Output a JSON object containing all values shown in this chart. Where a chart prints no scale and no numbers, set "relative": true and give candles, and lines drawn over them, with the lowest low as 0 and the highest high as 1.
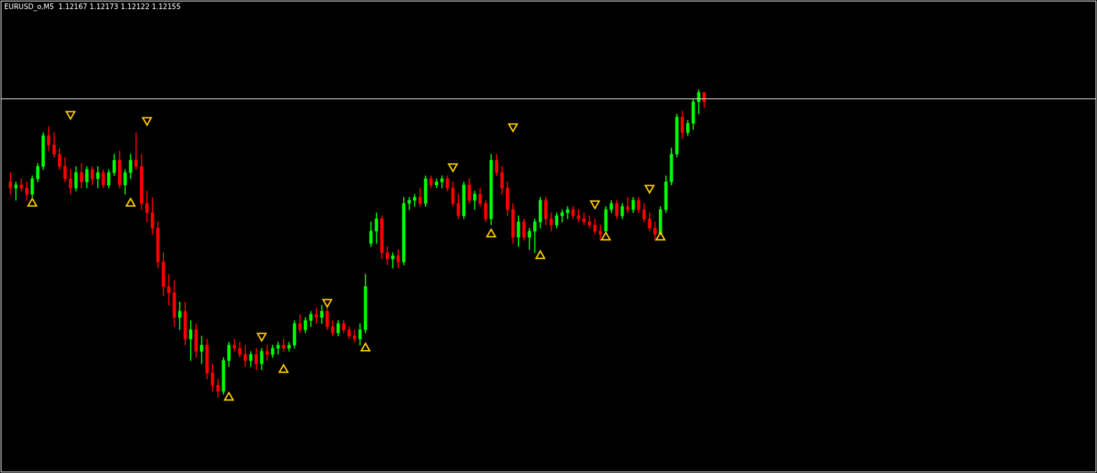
{
  "chart_data": {
    "type": "candlestick",
    "title": "EURUSD_o,M5  1.12167 1.12173 1.12122 1.12155",
    "relative": true,
    "tick_labels": false,
    "legend": false,
    "marker": "triangle",
    "categories": [
      null,
      null,
      null,
      null,
      null,
      null,
      null,
      null,
      null,
      null,
      null,
      null,
      null,
      null,
      null,
      null,
      null,
      null,
      null,
      null,
      null,
      null,
      null,
      null,
      null,
      null,
      null,
      null,
      null,
      null,
      null,
      null,
      null,
      null,
      null,
      null,
      null,
      null,
      null,
      null,
      null,
      null,
      null,
      null,
      null,
      null,
      null,
      null,
      null,
      null,
      null,
      null,
      null,
      null,
      null,
      null,
      null,
      null,
      null,
      null,
      null,
      null,
      null,
      null,
      null,
      null,
      null,
      null,
      null,
      null,
      null,
      null,
      null,
      null,
      null,
      null,
      null,
      null,
      null,
      null,
      null,
      null,
      null,
      null,
      null,
      null,
      null,
      null,
      null,
      null,
      null,
      null,
      null,
      null,
      null,
      null,
      null,
      null,
      null,
      null,
      null,
      null,
      null,
      null,
      null,
      null,
      null,
      null,
      null,
      null,
      null,
      null,
      null,
      null,
      null,
      null,
      null,
      null,
      null,
      null,
      null,
      null,
      null,
      null,
      null,
      null,
      null,
      null,
      null,
      null,
      null,
      null,
      null,
      null,
      null,
      null,
      null,
      null,
      null,
      null,
      null,
      null,
      null,
      null,
      null,
      null,
      null,
      null,
      null,
      null,
      null,
      null,
      null,
      null,
      null,
      null,
      null,
      null,
      null,
      null,
      null,
      null,
      null,
      null,
      null,
      null,
      null,
      null,
      null,
      null,
      null,
      null,
      null,
      null,
      null,
      null,
      null,
      null,
      null,
      null,
      null,
      null,
      null,
      null,
      null,
      null,
      null,
      null,
      null,
      null,
      null,
      null,
      null,
      null,
      null,
      null,
      null,
      null
    ],
    "ohlc": [
      [
        0.7,
        0.73,
        0.66,
        0.68
      ],
      [
        0.68,
        0.7,
        0.64,
        0.69
      ],
      [
        0.69,
        0.71,
        0.67,
        0.68
      ],
      [
        0.68,
        0.7,
        0.64,
        0.66
      ],
      [
        0.66,
        0.72,
        0.65,
        0.71
      ],
      [
        0.71,
        0.76,
        0.7,
        0.75
      ],
      [
        0.75,
        0.86,
        0.74,
        0.85
      ],
      [
        0.85,
        0.88,
        0.8,
        0.82
      ],
      [
        0.82,
        0.86,
        0.78,
        0.79
      ],
      [
        0.79,
        0.81,
        0.74,
        0.75
      ],
      [
        0.75,
        0.78,
        0.7,
        0.71
      ],
      [
        0.71,
        0.74,
        0.66,
        0.68
      ],
      [
        0.68,
        0.75,
        0.67,
        0.73
      ],
      [
        0.73,
        0.76,
        0.68,
        0.7
      ],
      [
        0.7,
        0.75,
        0.68,
        0.74
      ],
      [
        0.74,
        0.75,
        0.69,
        0.71
      ],
      [
        0.71,
        0.75,
        0.68,
        0.73
      ],
      [
        0.73,
        0.74,
        0.68,
        0.69
      ],
      [
        0.69,
        0.74,
        0.68,
        0.73
      ],
      [
        0.73,
        0.79,
        0.72,
        0.77
      ],
      [
        0.77,
        0.8,
        0.68,
        0.69
      ],
      [
        0.69,
        0.74,
        0.66,
        0.73
      ],
      [
        0.73,
        0.79,
        0.71,
        0.77
      ],
      [
        0.77,
        0.86,
        0.74,
        0.75
      ],
      [
        0.75,
        0.79,
        0.61,
        0.63
      ],
      [
        0.63,
        0.67,
        0.57,
        0.6
      ],
      [
        0.6,
        0.65,
        0.53,
        0.55
      ],
      [
        0.55,
        0.57,
        0.42,
        0.44
      ],
      [
        0.44,
        0.47,
        0.33,
        0.36
      ],
      [
        0.36,
        0.4,
        0.3,
        0.34
      ],
      [
        0.34,
        0.38,
        0.23,
        0.26
      ],
      [
        0.26,
        0.31,
        0.22,
        0.28
      ],
      [
        0.28,
        0.31,
        0.17,
        0.19
      ],
      [
        0.19,
        0.25,
        0.12,
        0.22
      ],
      [
        0.22,
        0.24,
        0.13,
        0.15
      ],
      [
        0.15,
        0.2,
        0.11,
        0.17
      ],
      [
        0.17,
        0.19,
        0.06,
        0.08
      ],
      [
        0.08,
        0.11,
        0.02,
        0.04
      ],
      [
        0.04,
        0.06,
        0,
        0.02
      ],
      [
        0.02,
        0.13,
        0.01,
        0.12
      ],
      [
        0.12,
        0.18,
        0.1,
        0.17
      ],
      [
        0.17,
        0.19,
        0.15,
        0.16
      ],
      [
        0.16,
        0.18,
        0.13,
        0.14
      ],
      [
        0.14,
        0.17,
        0.1,
        0.12
      ],
      [
        0.12,
        0.15,
        0.1,
        0.14
      ],
      [
        0.14,
        0.16,
        0.09,
        0.11
      ],
      [
        0.11,
        0.16,
        0.09,
        0.15
      ],
      [
        0.15,
        0.17,
        0.12,
        0.14
      ],
      [
        0.14,
        0.17,
        0.13,
        0.16
      ],
      [
        0.16,
        0.18,
        0.14,
        0.17
      ],
      [
        0.17,
        0.19,
        0.15,
        0.16
      ],
      [
        0.16,
        0.18,
        0.15,
        0.17
      ],
      [
        0.17,
        0.25,
        0.16,
        0.24
      ],
      [
        0.24,
        0.27,
        0.21,
        0.22
      ],
      [
        0.22,
        0.26,
        0.21,
        0.25
      ],
      [
        0.25,
        0.28,
        0.23,
        0.27
      ],
      [
        0.27,
        0.29,
        0.24,
        0.26
      ],
      [
        0.26,
        0.3,
        0.24,
        0.28
      ],
      [
        0.28,
        0.29,
        0.22,
        0.23
      ],
      [
        0.23,
        0.25,
        0.2,
        0.21
      ],
      [
        0.21,
        0.25,
        0.2,
        0.24
      ],
      [
        0.24,
        0.25,
        0.21,
        0.22
      ],
      [
        0.22,
        0.23,
        0.19,
        0.2
      ],
      [
        0.2,
        0.22,
        0.18,
        0.19
      ],
      [
        0.19,
        0.24,
        0.17,
        0.22
      ],
      [
        0.22,
        0.4,
        0.21,
        0.36
      ],
      [
        0.5,
        0.57,
        0.49,
        0.54
      ],
      [
        0.54,
        0.6,
        0.5,
        0.58
      ],
      [
        0.58,
        0.59,
        0.45,
        0.47
      ],
      [
        0.47,
        0.49,
        0.43,
        0.45
      ],
      [
        0.45,
        0.47,
        0.42,
        0.46
      ],
      [
        0.46,
        0.48,
        0.42,
        0.44
      ],
      [
        0.44,
        0.65,
        0.43,
        0.63
      ],
      [
        0.63,
        0.65,
        0.61,
        0.64
      ],
      [
        0.64,
        0.66,
        0.62,
        0.65
      ],
      [
        0.65,
        0.68,
        0.62,
        0.63
      ],
      [
        0.63,
        0.72,
        0.62,
        0.71
      ],
      [
        0.71,
        0.72,
        0.68,
        0.69
      ],
      [
        0.69,
        0.71,
        0.68,
        0.7
      ],
      [
        0.7,
        0.72,
        0.68,
        0.71
      ],
      [
        0.71,
        0.72,
        0.67,
        0.68
      ],
      [
        0.68,
        0.7,
        0.62,
        0.63
      ],
      [
        0.63,
        0.66,
        0.58,
        0.59
      ],
      [
        0.59,
        0.7,
        0.58,
        0.69
      ],
      [
        0.69,
        0.71,
        0.63,
        0.64
      ],
      [
        0.64,
        0.67,
        0.61,
        0.66
      ],
      [
        0.66,
        0.68,
        0.62,
        0.63
      ],
      [
        0.63,
        0.64,
        0.57,
        0.58
      ],
      [
        0.58,
        0.79,
        0.56,
        0.77
      ],
      [
        0.77,
        0.79,
        0.72,
        0.73
      ],
      [
        0.73,
        0.75,
        0.66,
        0.68
      ],
      [
        0.68,
        0.7,
        0.59,
        0.61
      ],
      [
        0.61,
        0.63,
        0.5,
        0.52
      ],
      [
        0.52,
        0.59,
        0.49,
        0.57
      ],
      [
        0.57,
        0.58,
        0.51,
        0.52
      ],
      [
        0.52,
        0.55,
        0.48,
        0.54
      ],
      [
        0.54,
        0.58,
        0.47,
        0.57
      ],
      [
        0.57,
        0.65,
        0.55,
        0.64
      ],
      [
        0.64,
        0.65,
        0.56,
        0.58
      ],
      [
        0.58,
        0.6,
        0.54,
        0.56
      ],
      [
        0.56,
        0.6,
        0.55,
        0.59
      ],
      [
        0.59,
        0.61,
        0.57,
        0.6
      ],
      [
        0.6,
        0.62,
        0.58,
        0.61
      ],
      [
        0.61,
        0.62,
        0.58,
        0.59
      ],
      [
        0.59,
        0.61,
        0.57,
        0.58
      ],
      [
        0.58,
        0.6,
        0.56,
        0.57
      ],
      [
        0.57,
        0.59,
        0.55,
        0.56
      ],
      [
        0.56,
        0.58,
        0.53,
        0.54
      ],
      [
        0.54,
        0.56,
        0.51,
        0.53
      ],
      [
        0.54,
        0.62,
        0.54,
        0.61
      ],
      [
        0.61,
        0.64,
        0.6,
        0.63
      ],
      [
        0.63,
        0.64,
        0.58,
        0.59
      ],
      [
        0.59,
        0.63,
        0.58,
        0.62
      ],
      [
        0.62,
        0.65,
        0.6,
        0.61
      ],
      [
        0.61,
        0.65,
        0.6,
        0.64
      ],
      [
        0.64,
        0.65,
        0.6,
        0.61
      ],
      [
        0.61,
        0.63,
        0.57,
        0.58
      ],
      [
        0.58,
        0.6,
        0.54,
        0.55
      ],
      [
        0.55,
        0.57,
        0.51,
        0.53
      ],
      [
        0.53,
        0.62,
        0.53,
        0.61
      ],
      [
        0.61,
        0.72,
        0.6,
        0.7
      ],
      [
        0.7,
        0.81,
        0.69,
        0.79
      ],
      [
        0.79,
        0.92,
        0.78,
        0.91
      ],
      [
        0.91,
        0.93,
        0.84,
        0.86
      ],
      [
        0.86,
        0.9,
        0.85,
        0.89
      ],
      [
        0.89,
        0.97,
        0.87,
        0.96
      ],
      [
        0.96,
        1,
        0.92,
        0.99
      ],
      [
        0.99,
        0.99,
        0.94,
        0.96
      ],
      null,
      null,
      null,
      null,
      null,
      null,
      null,
      null,
      null,
      null,
      null,
      null,
      null,
      null,
      null,
      null,
      null,
      null,
      null,
      null,
      null,
      null,
      null,
      null,
      null,
      null,
      null,
      null,
      null,
      null,
      null,
      null,
      null,
      null,
      null,
      null,
      null,
      null,
      null,
      null,
      null,
      null,
      null,
      null,
      null,
      null,
      null,
      null,
      null,
      null,
      null,
      null,
      null,
      null,
      null,
      null,
      null,
      null,
      null,
      null,
      null,
      null,
      null,
      null,
      null,
      null,
      null,
      null,
      null,
      null
    ],
    "colors": [
      "#ff0000",
      "#00ff00",
      "#ff0000",
      "#ff0000",
      "#00ff00",
      "#00ff00",
      "#00ff00",
      "#ff0000",
      "#ff0000",
      "#ff0000",
      "#ff0000",
      "#ff0000",
      "#00ff00",
      "#ff0000",
      "#00ff00",
      "#ff0000",
      "#00ff00",
      "#ff0000",
      "#00ff00",
      "#00ff00",
      "#ff0000",
      "#00ff00",
      "#00ff00",
      "#ff0000",
      "#ff0000",
      "#ff0000",
      "#ff0000",
      "#ff0000",
      "#ff0000",
      "#ff0000",
      "#ff0000",
      "#00ff00",
      "#ff0000",
      "#00ff00",
      "#ff0000",
      "#00ff00",
      "#ff0000",
      "#ff0000",
      "#ff0000",
      "#00ff00",
      "#00ff00",
      "#ff0000",
      "#ff0000",
      "#ff0000",
      "#00ff00",
      "#ff0000",
      "#00ff00",
      "#ff0000",
      "#00ff00",
      "#00ff00",
      "#ff0000",
      "#00ff00",
      "#00ff00",
      "#ff0000",
      "#00ff00",
      "#00ff00",
      "#ff0000",
      "#00ff00",
      "#ff0000",
      "#ff0000",
      "#00ff00",
      "#ff0000",
      "#ff0000",
      "#ff0000",
      "#00ff00",
      "#00ff00",
      "#00ff00",
      "#00ff00",
      "#ff0000",
      "#ff0000",
      "#00ff00",
      "#ff0000",
      "#00ff00",
      "#00ff00",
      "#00ff00",
      "#ff0000",
      "#00ff00",
      "#ff0000",
      "#00ff00",
      "#00ff00",
      "#ff0000",
      "#ff0000",
      "#ff0000",
      "#00ff00",
      "#ff0000",
      "#00ff00",
      "#ff0000",
      "#ff0000",
      "#00ff00",
      "#ff0000",
      "#ff0000",
      "#ff0000",
      "#ff0000",
      "#00ff00",
      "#ff0000",
      "#00ff00",
      "#00ff00",
      "#00ff00",
      "#ff0000",
      "#ff0000",
      "#00ff00",
      "#00ff00",
      "#00ff00",
      "#ff0000",
      "#ff0000",
      "#ff0000",
      "#ff0000",
      "#ff0000",
      "#ff0000",
      "#00ff00",
      "#00ff00",
      "#ff0000",
      "#00ff00",
      "#ff0000",
      "#00ff00",
      "#ff0000",
      "#ff0000",
      "#ff0000",
      "#ff0000",
      "#00ff00",
      "#00ff00",
      "#00ff00",
      "#00ff00",
      "#ff0000",
      "#00ff00",
      "#00ff00",
      "#00ff00",
      "#ff0000",
      null,
      null,
      null,
      null,
      null,
      null,
      null,
      null,
      null,
      null,
      null,
      null,
      null,
      null,
      null,
      null,
      null,
      null,
      null,
      null,
      null,
      null,
      null,
      null,
      null,
      null,
      null,
      null,
      null,
      null,
      null,
      null,
      null,
      null,
      null,
      null,
      null,
      null,
      null,
      null,
      null,
      null,
      null,
      null,
      null,
      null,
      null,
      null,
      null,
      null,
      null,
      null,
      null,
      null,
      null,
      null,
      null,
      null,
      null,
      null,
      null,
      null,
      null,
      null,
      null,
      null,
      null,
      null,
      null,
      null
    ],
    "series": [
      {
        "type": "scatter",
        "color": "#ffcc00",
        "values": [
          null,
          null,
          null,
          null,
          0.63,
          null,
          null,
          null,
          null,
          null,
          null,
          null,
          null,
          null,
          null,
          null,
          null,
          null,
          null,
          null,
          null,
          null,
          0.63,
          null,
          null,
          null,
          null,
          null,
          null,
          null,
          null,
          null,
          null,
          null,
          null,
          null,
          null,
          null,
          null,
          null,
          0,
          null,
          null,
          null,
          null,
          null,
          null,
          null,
          null,
          null,
          0.09,
          null,
          null,
          null,
          null,
          null,
          null,
          null,
          null,
          null,
          null,
          null,
          null,
          null,
          null,
          0.16,
          null,
          null,
          null,
          null,
          null,
          null,
          null,
          null,
          null,
          null,
          null,
          null,
          null,
          null,
          null,
          null,
          null,
          null,
          null,
          null,
          null,
          null,
          0.53,
          null,
          null,
          null,
          null,
          null,
          null,
          null,
          null,
          0.46,
          null,
          null,
          null,
          null,
          null,
          null,
          null,
          null,
          null,
          null,
          null,
          0.52,
          null,
          null,
          null,
          null,
          null,
          null,
          null,
          null,
          null,
          0.52,
          null,
          null,
          null,
          null,
          null,
          null,
          null,
          null,
          null,
          null,
          null,
          null,
          null,
          null,
          null,
          null,
          null,
          null,
          null,
          null,
          null,
          null,
          null,
          null,
          null,
          null,
          null,
          null,
          null,
          null,
          null,
          null,
          null,
          null,
          null,
          null,
          null,
          null,
          null,
          null,
          null,
          null,
          null,
          null,
          null,
          null,
          null,
          null,
          null,
          null,
          null,
          null,
          null,
          null,
          null,
          null,
          null,
          null,
          null,
          null,
          null,
          null,
          null,
          null,
          null,
          null,
          null,
          null,
          null,
          null,
          null,
          null,
          null,
          null,
          null,
          null,
          null,
          null
        ]
      },
      {
        "type": "scatter",
        "color": "#ffcc00",
        "values": [
          null,
          null,
          null,
          null,
          null,
          null,
          null,
          null,
          null,
          null,
          null,
          0.92,
          null,
          null,
          null,
          null,
          null,
          null,
          null,
          null,
          null,
          null,
          null,
          null,
          null,
          0.9,
          null,
          null,
          null,
          null,
          null,
          null,
          null,
          null,
          null,
          null,
          null,
          null,
          null,
          null,
          null,
          null,
          null,
          null,
          null,
          null,
          0.2,
          null,
          null,
          null,
          null,
          null,
          null,
          null,
          null,
          null,
          null,
          null,
          0.31,
          null,
          null,
          null,
          null,
          null,
          null,
          null,
          null,
          null,
          null,
          null,
          null,
          null,
          null,
          null,
          null,
          null,
          null,
          null,
          null,
          null,
          null,
          0.75,
          null,
          null,
          null,
          null,
          null,
          null,
          null,
          null,
          null,
          null,
          0.88,
          null,
          null,
          null,
          null,
          null,
          null,
          null,
          null,
          null,
          null,
          null,
          null,
          null,
          null,
          0.63,
          null,
          null,
          null,
          null,
          null,
          null,
          null,
          null,
          null,
          0.68,
          null,
          null,
          null,
          null,
          null,
          null,
          null,
          null,
          null,
          null,
          null,
          null,
          null,
          null,
          null,
          null,
          null,
          null,
          null,
          null,
          null,
          null,
          null,
          null,
          null,
          null,
          null,
          null,
          null,
          null,
          null,
          null,
          null,
          null,
          null,
          null,
          null,
          null,
          null,
          null,
          null,
          null,
          null,
          null,
          null,
          null,
          null,
          null,
          null,
          null,
          null,
          null,
          null,
          null,
          null,
          null,
          null,
          null,
          null,
          null,
          null,
          null,
          null,
          null,
          null,
          null,
          null,
          null,
          null,
          null,
          null,
          null,
          null,
          null,
          null,
          null,
          null,
          null,
          null,
          null
        ]
      }
    ],
    "ref_lines": [
      {
        "axis": "y",
        "value": 0.97,
        "color": "#ffffff"
      }
    ]
  }
}
